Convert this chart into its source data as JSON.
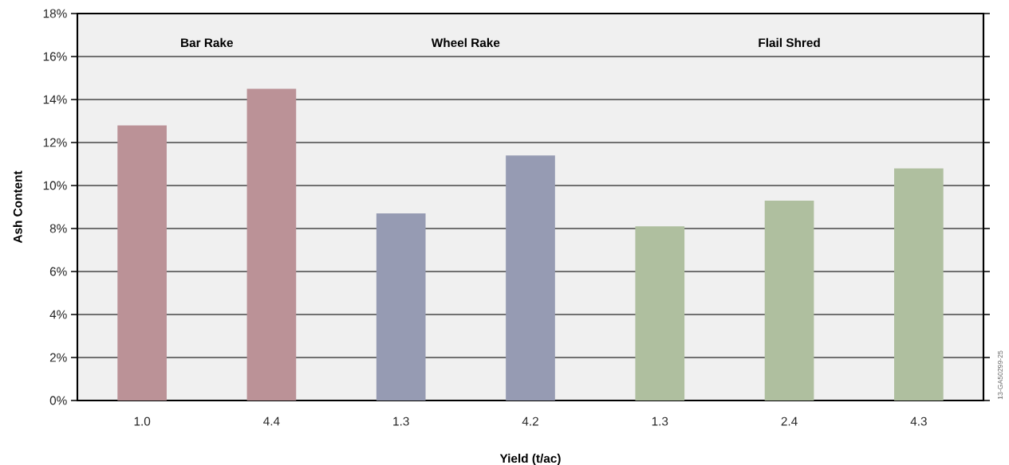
{
  "chart_data": {
    "type": "bar",
    "xlabel": "Yield (t/ac)",
    "ylabel": "Ash Content",
    "categories": [
      "1.0",
      "4.4",
      "1.3",
      "4.2",
      "1.3",
      "2.4",
      "4.3"
    ],
    "values": [
      12.8,
      14.5,
      8.7,
      11.4,
      8.1,
      9.3,
      10.8
    ],
    "colors": [
      "#bb9297",
      "#bb9297",
      "#969bb3",
      "#969bb3",
      "#afbf9f",
      "#afbf9f",
      "#afbf9f"
    ],
    "ylim": [
      0,
      18
    ],
    "yticks": [
      {
        "value": 0,
        "label": "0%"
      },
      {
        "value": 2,
        "label": "2%"
      },
      {
        "value": 4,
        "label": "4%"
      },
      {
        "value": 6,
        "label": "6%"
      },
      {
        "value": 8,
        "label": "8%"
      },
      {
        "value": 10,
        "label": "10%"
      },
      {
        "value": 12,
        "label": "12%"
      },
      {
        "value": 14,
        "label": "14%"
      },
      {
        "value": 16,
        "label": "16%"
      },
      {
        "value": 18,
        "label": "18%"
      }
    ],
    "grid": "y",
    "annotations": [
      "Bar Rake",
      "Wheel Rake",
      "Flail Shred",
      "13-GA50299-25"
    ]
  }
}
